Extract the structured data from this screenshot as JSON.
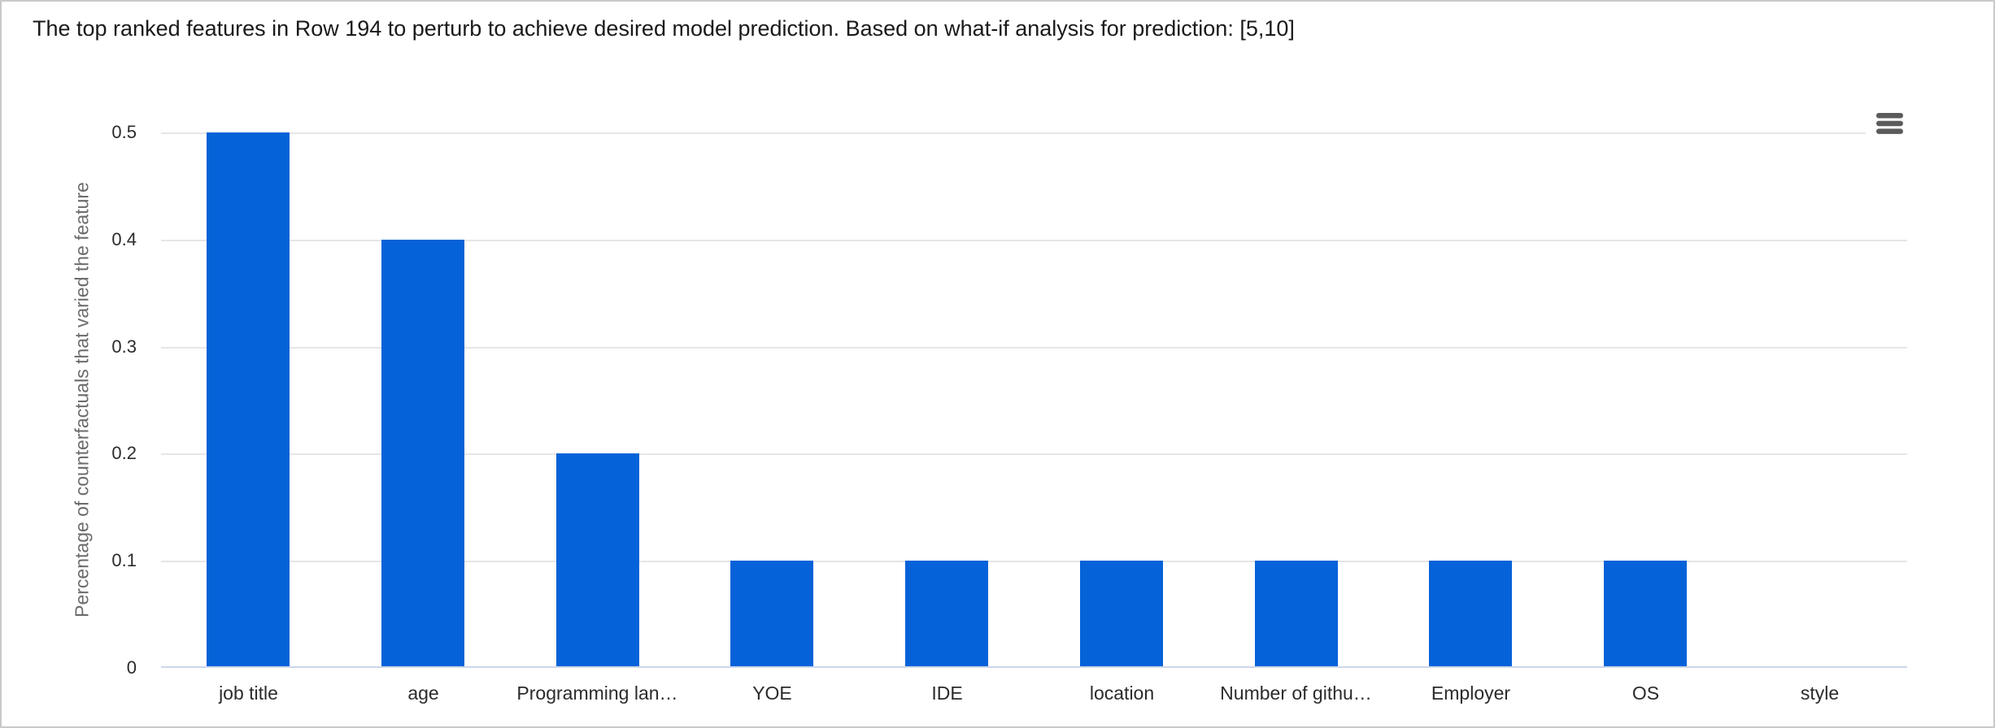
{
  "chart_data": {
    "type": "bar",
    "title": "The top ranked features in Row 194 to perturb to achieve desired model prediction. Based on what-if analysis for prediction: [5,10]",
    "categories": [
      "job title",
      "age",
      "Programming lan…",
      "YOE",
      "IDE",
      "location",
      "Number of githu…",
      "Employer",
      "OS",
      "style"
    ],
    "values": [
      0.5,
      0.4,
      0.2,
      0.1,
      0.1,
      0.1,
      0.1,
      0.1,
      0.1,
      0
    ],
    "xlabel": "",
    "ylabel": "Percentage of counterfactuals that varied the feature",
    "ylim": [
      0,
      0.5
    ],
    "yticks": [
      0,
      0.1,
      0.2,
      0.3,
      0.4,
      0.5
    ],
    "ytick_labels": [
      "0",
      "0.1",
      "0.2",
      "0.3",
      "0.4",
      "0.5"
    ],
    "grid": true,
    "legend": "none",
    "bar_color": "#0562d9"
  },
  "toolbar": {
    "context_menu_icon": "hamburger-icon"
  },
  "colors": {
    "bar": "#0562d9",
    "gridline": "#e6e6e6",
    "axis_line": "#ccd6eb",
    "tick_label": "#2b2b2b",
    "axis_title": "#6b6b6b",
    "title": "#1a1a1a",
    "menu_icon": "#5b5b5b",
    "page_border": "#c9c9c9"
  }
}
